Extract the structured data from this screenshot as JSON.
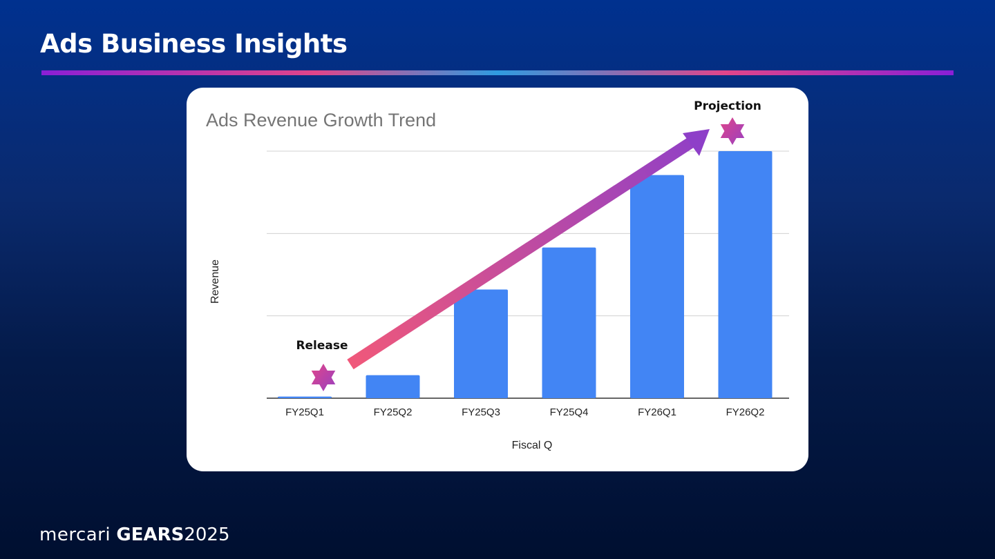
{
  "slide": {
    "title": "Ads Business Insights"
  },
  "footer": {
    "brand": "mercari",
    "event": "GEARS",
    "year": "2025"
  },
  "chart_data": {
    "type": "bar",
    "title": "Ads Revenue Growth Trend",
    "xlabel": "Fiscal Q",
    "ylabel": "Revenue",
    "categories": [
      "FY25Q1",
      "FY25Q2",
      "FY25Q3",
      "FY25Q4",
      "FY26Q1",
      "FY26Q2"
    ],
    "values": [
      0.02,
      0.28,
      1.32,
      1.83,
      2.71,
      3.0
    ],
    "ylim": [
      0,
      3
    ],
    "gridlines": [
      0,
      1,
      2,
      3
    ],
    "y_tick_labels_shown": false,
    "grid": true,
    "bar_color": "#4285f4",
    "annotations": [
      {
        "text": "Release",
        "category": "FY25Q1",
        "marker": "star"
      },
      {
        "text": "Projection",
        "category": "FY26Q2",
        "marker": "star"
      }
    ],
    "trend_arrow": {
      "from": "FY25Q2",
      "to": "FY26Q2",
      "colors": [
        "#f0587a",
        "#8e3fc8"
      ]
    }
  }
}
